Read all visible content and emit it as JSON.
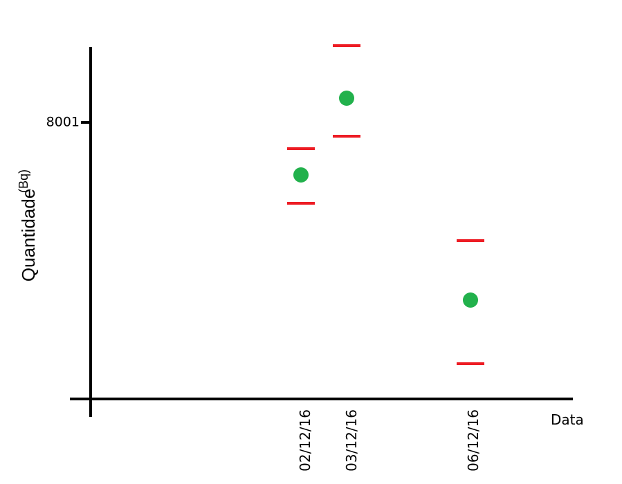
{
  "chart_data": {
    "type": "scatter",
    "title": "",
    "ylabel": "Quantidade",
    "yunit": "(Bq)",
    "xlabel": "Data",
    "yticks": [
      8001
    ],
    "grid": false,
    "legend": "none",
    "x": [
      "02/12/16",
      "03/12/16",
      "06/12/16"
    ],
    "points": [
      {
        "x": "02/12/16",
        "y": 7925,
        "err_low": 7884,
        "err_high": 7963
      },
      {
        "x": "03/12/16",
        "y": 8036,
        "err_low": 7981,
        "err_high": 8112
      },
      {
        "x": "06/12/16",
        "y": 7744,
        "err_low": 7652,
        "err_high": 7830
      }
    ],
    "colors": {
      "point": "#22b14c",
      "error_bar": "#ed1c24",
      "axis": "#000000"
    }
  }
}
